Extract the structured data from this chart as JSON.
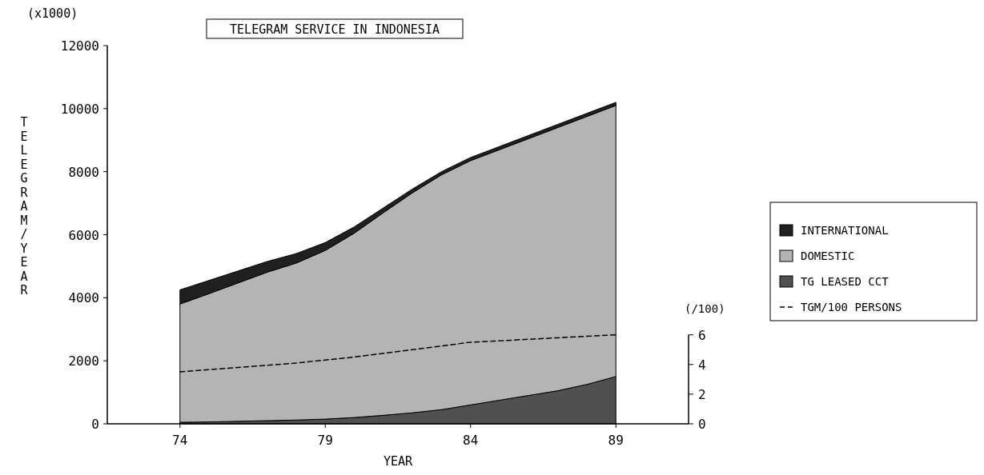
{
  "chart_data": {
    "type": "area",
    "stacked": true,
    "title": "TELEGRAM SERVICE IN INDONESIA",
    "xlabel": "YEAR",
    "ylabel": "TELEGRAM/YEAR",
    "y2label": "(/100)",
    "annotations": [
      "(x1000)"
    ],
    "x": [
      74,
      75,
      76,
      77,
      78,
      79,
      80,
      81,
      82,
      83,
      84,
      85,
      86,
      87,
      88,
      89
    ],
    "series": [
      {
        "name": "TG LEASED CCT",
        "color": "#505050",
        "values": [
          50,
          60,
          80,
          100,
          120,
          150,
          200,
          270,
          350,
          450,
          600,
          750,
          900,
          1050,
          1250,
          1500
        ]
      },
      {
        "name": "DOMESTIC",
        "color": "#b4b4b4",
        "values": [
          3750,
          4070,
          4390,
          4710,
          4980,
          5350,
          5850,
          6430,
          6980,
          7450,
          7750,
          7950,
          8150,
          8350,
          8500,
          8600
        ]
      },
      {
        "name": "INTERNATIONAL",
        "color": "#202020",
        "values": [
          450,
          420,
          380,
          340,
          300,
          250,
          200,
          150,
          120,
          100,
          100,
          100,
          100,
          100,
          100,
          100
        ]
      },
      {
        "name": "TGM/100 PERSONS",
        "type": "line",
        "axis": "y2",
        "color": "#000000",
        "line_style": "dashed",
        "values": [
          3.5,
          3.65,
          3.8,
          3.95,
          4.1,
          4.3,
          4.5,
          4.75,
          5.0,
          5.25,
          5.5,
          5.6,
          5.7,
          5.8,
          5.9,
          6.0
        ]
      }
    ],
    "xlim": [
      71.5,
      91.5
    ],
    "xticks": [
      74,
      79,
      84,
      89
    ],
    "ylim": [
      0,
      12000
    ],
    "yticks": [
      0,
      2000,
      4000,
      6000,
      8000,
      10000,
      12000
    ],
    "y2lim": [
      0,
      25.5
    ],
    "y2ticks": [
      0,
      2,
      4,
      6
    ],
    "grid": false,
    "legend": "right"
  }
}
